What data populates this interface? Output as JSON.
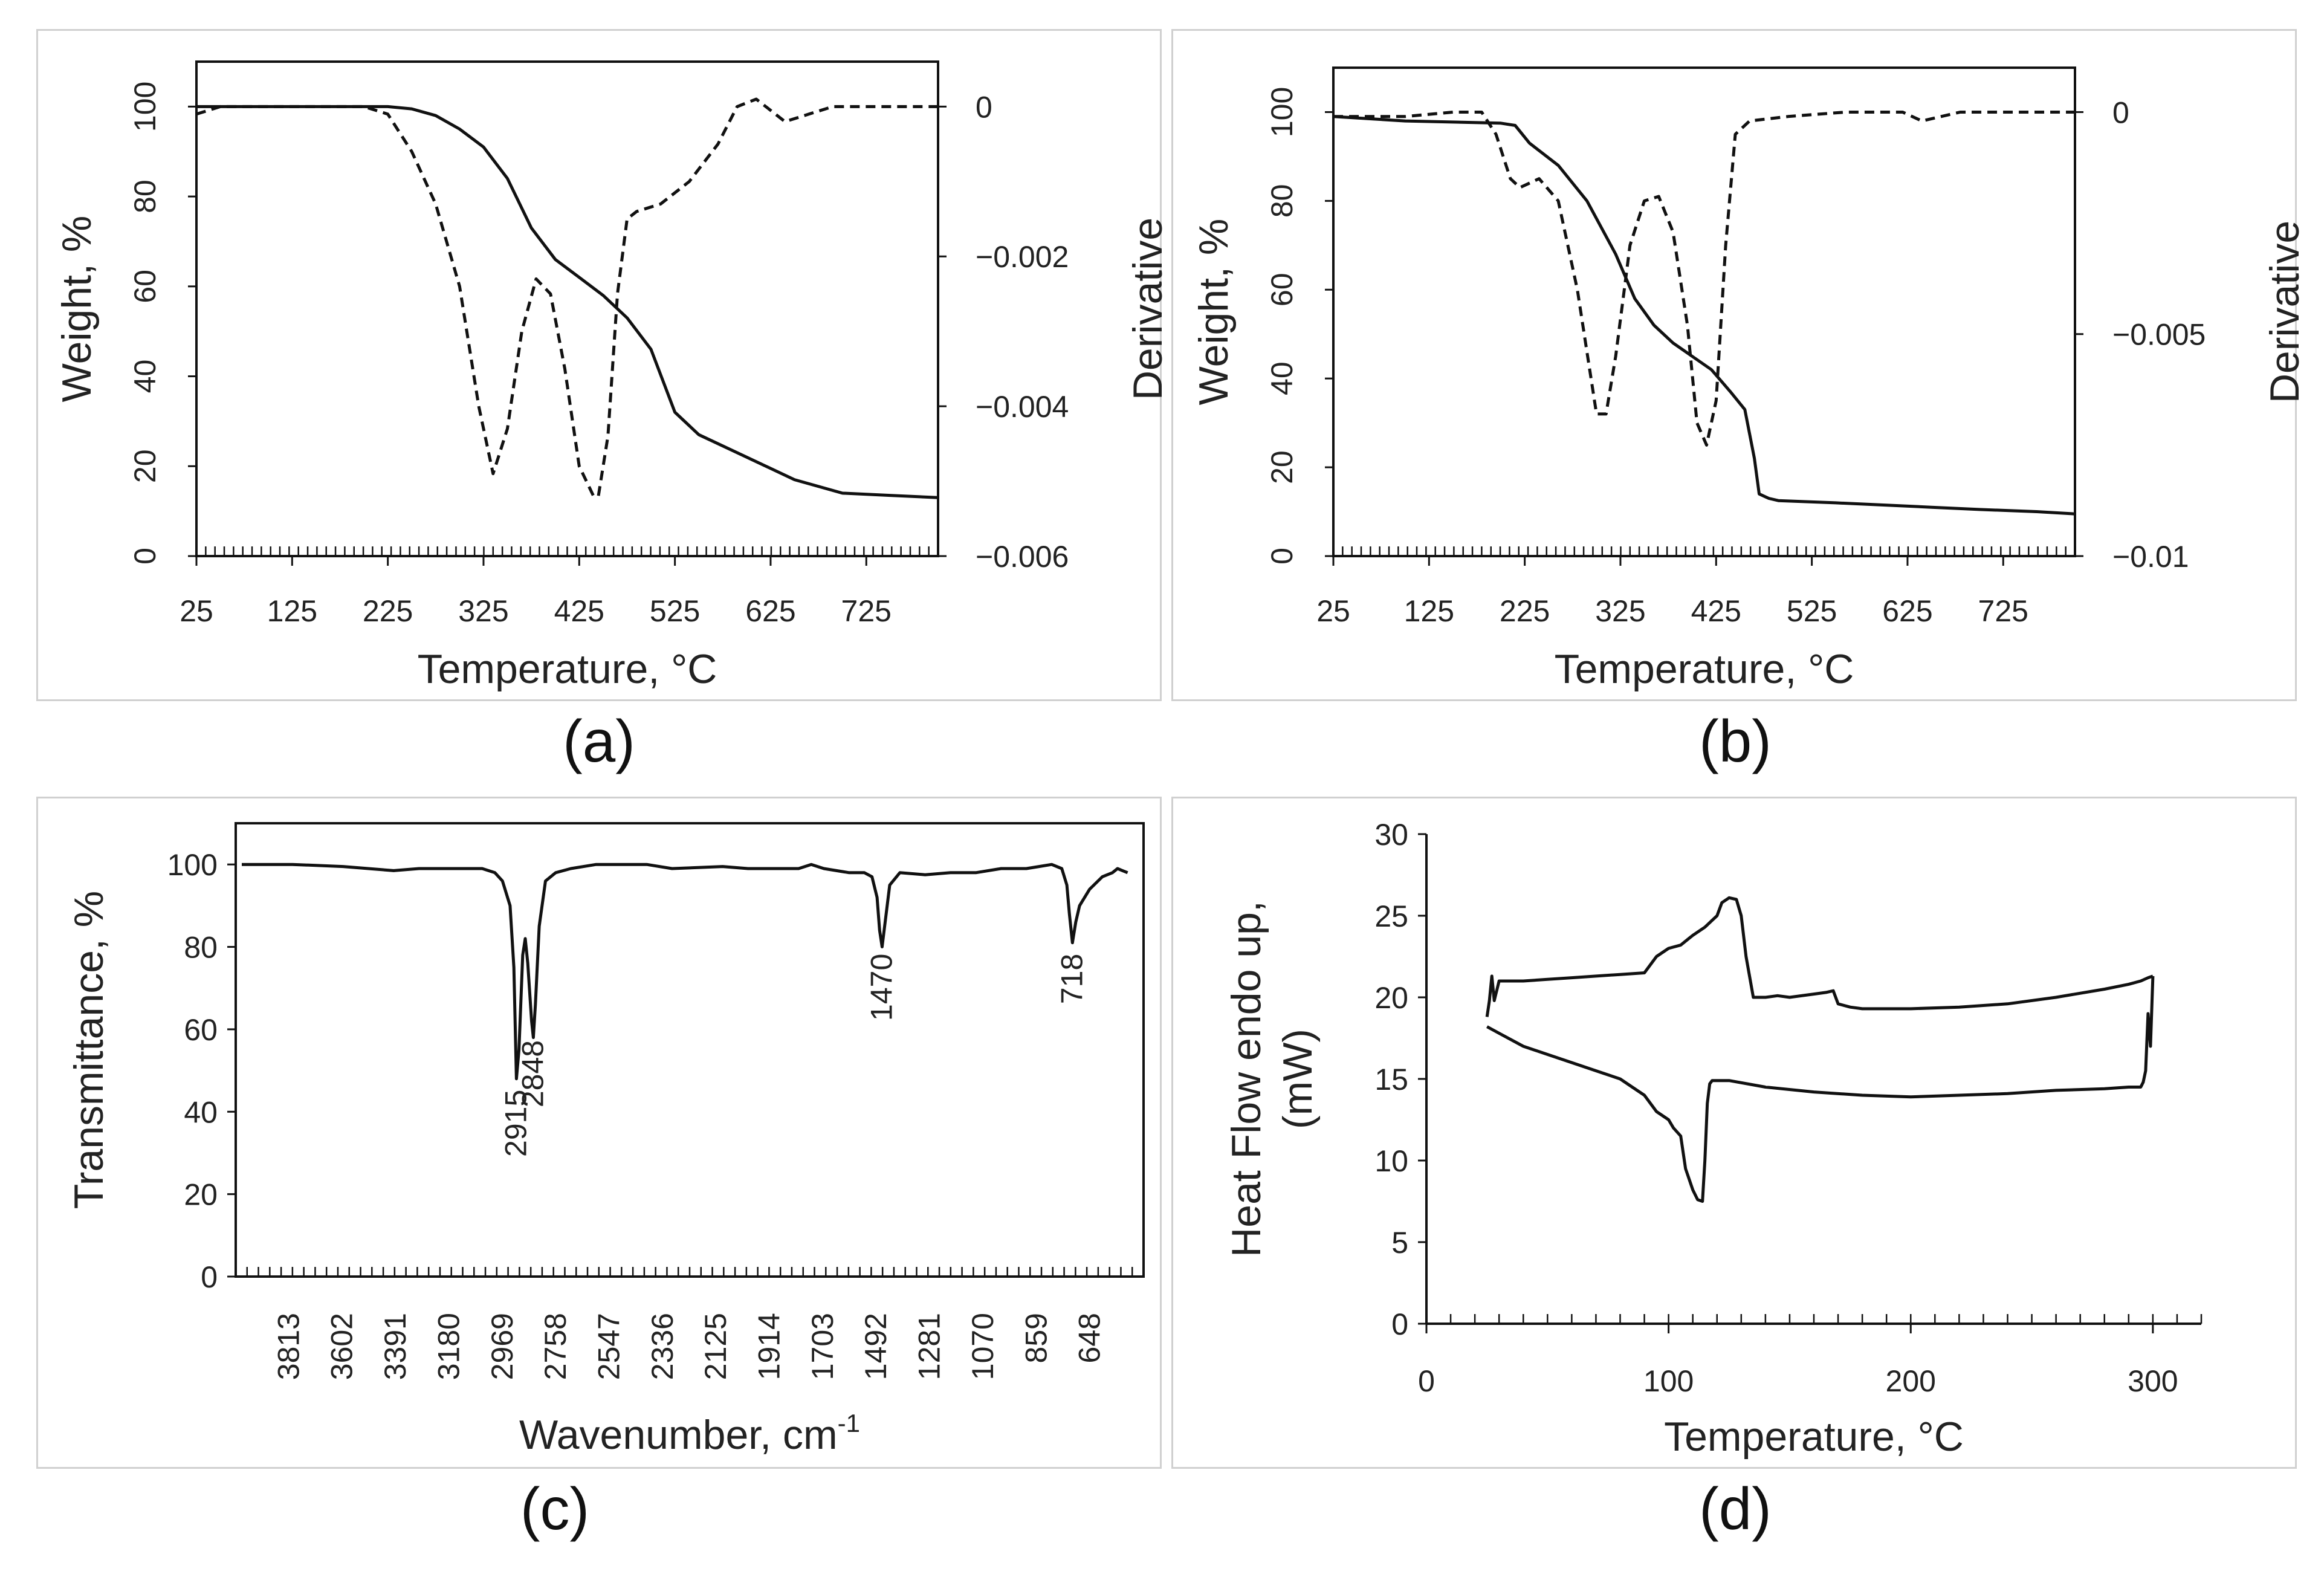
{
  "captions": [
    "(a)",
    "(b)",
    "(c)",
    "(d)"
  ],
  "chart_data": [
    {
      "panel": "a",
      "type": "line",
      "xlabel": "Temperature, °C",
      "ylabel": "Weight, %",
      "y2label": "Derivative",
      "xlim": [
        25,
        800
      ],
      "ylim": [
        0,
        110
      ],
      "y2lim": [
        -0.006,
        0.0006
      ],
      "x_ticks": [
        25,
        125,
        225,
        325,
        425,
        525,
        625,
        725
      ],
      "y_ticks": [
        0,
        20,
        40,
        60,
        80,
        100
      ],
      "y2_ticks": [
        0,
        -0.002,
        -0.004,
        -0.006
      ],
      "y2_tick_labels": [
        "0",
        "−0.002",
        "−0.004",
        "−0.006"
      ],
      "series": [
        {
          "axis": "left",
          "style": "solid",
          "x": [
            25,
            225,
            250,
            275,
            300,
            325,
            350,
            375,
            400,
            425,
            450,
            475,
            500,
            525,
            550,
            600,
            650,
            700,
            750,
            800
          ],
          "y": [
            100,
            100,
            99.5,
            98,
            95,
            91,
            84,
            73,
            66,
            62,
            58,
            53,
            46,
            32,
            27,
            22,
            17,
            14,
            13.5,
            13
          ]
        },
        {
          "axis": "right",
          "style": "dashed",
          "x": [
            25,
            50,
            100,
            150,
            200,
            225,
            250,
            275,
            300,
            320,
            335,
            350,
            365,
            380,
            395,
            410,
            425,
            440,
            445,
            455,
            465,
            475,
            485,
            510,
            540,
            570,
            590,
            610,
            640,
            665,
            690,
            720,
            760,
            800
          ],
          "y": [
            -0.0001,
            0,
            0,
            0,
            0,
            -0.0001,
            -0.0006,
            -0.0013,
            -0.0024,
            -0.004,
            -0.0049,
            -0.0043,
            -0.003,
            -0.0023,
            -0.0025,
            -0.0035,
            -0.0048,
            -0.0052,
            -0.0052,
            -0.0044,
            -0.0025,
            -0.0015,
            -0.0014,
            -0.0013,
            -0.001,
            -0.0005,
            0,
            0.0001,
            -0.0002,
            -0.0001,
            0,
            0,
            0,
            0
          ]
        }
      ]
    },
    {
      "panel": "b",
      "type": "line",
      "xlabel": "Temperature, °C",
      "ylabel": "Weight, %",
      "y2label": "Derivative",
      "xlim": [
        25,
        800
      ],
      "ylim": [
        0,
        110
      ],
      "y2lim": [
        -0.01,
        0.001
      ],
      "x_ticks": [
        25,
        125,
        225,
        325,
        425,
        525,
        625,
        725
      ],
      "y_ticks": [
        0,
        20,
        40,
        60,
        80,
        100
      ],
      "y2_ticks": [
        0,
        -0.005,
        -0.01
      ],
      "y2_tick_labels": [
        "0",
        "−0.005",
        "−0.01"
      ],
      "series": [
        {
          "axis": "left",
          "style": "solid",
          "x": [
            25,
            100,
            200,
            215,
            230,
            260,
            290,
            320,
            340,
            360,
            380,
            400,
            420,
            440,
            455,
            465,
            470,
            480,
            490,
            550,
            650,
            700,
            760,
            800
          ],
          "y": [
            99,
            98,
            97.5,
            97,
            93,
            88,
            80,
            68,
            58,
            52,
            48,
            45,
            42,
            37,
            33,
            22,
            14,
            13,
            12.5,
            12,
            11,
            10.5,
            10,
            9.5
          ]
        },
        {
          "axis": "right",
          "style": "dashed",
          "x": [
            25,
            50,
            100,
            150,
            180,
            195,
            210,
            220,
            240,
            260,
            280,
            300,
            310,
            320,
            335,
            350,
            365,
            380,
            395,
            405,
            415,
            425,
            435,
            445,
            460,
            500,
            560,
            620,
            640,
            680,
            740,
            800
          ],
          "y": [
            -0.0001,
            -0.0001,
            -0.0001,
            0,
            0,
            -0.0005,
            -0.0015,
            -0.0017,
            -0.0015,
            -0.002,
            -0.004,
            -0.0068,
            -0.0068,
            -0.0055,
            -0.003,
            -0.002,
            -0.0019,
            -0.0027,
            -0.0048,
            -0.007,
            -0.0075,
            -0.0065,
            -0.003,
            -0.0005,
            -0.0002,
            -0.0001,
            0,
            0,
            -0.0002,
            0,
            0,
            0
          ]
        }
      ]
    },
    {
      "panel": "c",
      "type": "line",
      "xlabel": "Wavenumber, cm",
      "xlabel_sup": "-1",
      "ylabel": "Transmittance, %",
      "xlim": [
        4024,
        437
      ],
      "ylim": [
        0,
        110
      ],
      "x_ticks": [
        3813,
        3602,
        3391,
        3180,
        2969,
        2758,
        2547,
        2336,
        2125,
        1914,
        1703,
        1492,
        1281,
        1070,
        859,
        648
      ],
      "y_ticks": [
        0,
        20,
        40,
        60,
        80,
        100
      ],
      "annotations": [
        {
          "text": "2915",
          "x": 2915,
          "y": 48
        },
        {
          "text": "2848",
          "x": 2848,
          "y": 60
        },
        {
          "text": "1470",
          "x": 1470,
          "y": 81
        },
        {
          "text": "718",
          "x": 718,
          "y": 81
        }
      ],
      "series": [
        {
          "style": "solid",
          "x": [
            4000,
            3800,
            3600,
            3500,
            3400,
            3300,
            3200,
            3050,
            3000,
            2970,
            2940,
            2925,
            2915,
            2905,
            2890,
            2880,
            2870,
            2855,
            2848,
            2840,
            2825,
            2800,
            2760,
            2700,
            2600,
            2400,
            2300,
            2100,
            2000,
            1900,
            1800,
            1750,
            1700,
            1600,
            1540,
            1510,
            1490,
            1480,
            1470,
            1460,
            1440,
            1400,
            1300,
            1200,
            1100,
            1000,
            900,
            850,
            800,
            760,
            740,
            730,
            718,
            705,
            690,
            650,
            600,
            560,
            540,
            520,
            500
          ],
          "y": [
            100,
            100,
            99.5,
            99,
            98.5,
            99,
            99,
            99,
            98,
            96,
            90,
            75,
            48,
            55,
            78,
            82,
            76,
            62,
            58,
            66,
            85,
            96,
            98,
            99,
            100,
            100,
            99,
            99.5,
            99,
            99,
            99,
            100,
            99,
            98,
            98,
            97,
            92,
            84,
            80,
            85,
            95,
            98,
            97.5,
            98,
            98,
            99,
            99,
            99.5,
            100,
            99,
            95,
            88,
            81,
            86,
            90,
            94,
            97,
            98,
            99,
            98.5,
            98
          ]
        }
      ]
    },
    {
      "panel": "d",
      "type": "line",
      "xlabel": "Temperature, °C",
      "ylabel_line1": "Heat Flow endo up,",
      "ylabel_line2": "(mW)",
      "xlim": [
        0,
        320
      ],
      "ylim": [
        0,
        30
      ],
      "x_ticks": [
        0,
        100,
        200,
        300
      ],
      "y_ticks": [
        0,
        5,
        10,
        15,
        20,
        25,
        30
      ],
      "series": [
        {
          "name": "",
          "style": "solid",
          "x": [
            25,
            26,
            27,
            28,
            29,
            30,
            32,
            35,
            40,
            50,
            60,
            70,
            80,
            90,
            95,
            100,
            105,
            110,
            115,
            120,
            122,
            125,
            128,
            130,
            132,
            135,
            140,
            145,
            150,
            160,
            165,
            168,
            170,
            175,
            180,
            200,
            220,
            240,
            260,
            280,
            290,
            295,
            298,
            300
          ],
          "y": [
            18.8,
            19.8,
            21.3,
            19.8,
            20.4,
            21.0,
            21.0,
            21.0,
            21.0,
            21.1,
            21.2,
            21.3,
            21.4,
            21.5,
            22.5,
            23.0,
            23.2,
            23.8,
            24.3,
            25.0,
            25.8,
            26.1,
            26.0,
            25.0,
            22.5,
            20.0,
            20.0,
            20.1,
            20.0,
            20.2,
            20.3,
            20.4,
            19.6,
            19.4,
            19.3,
            19.3,
            19.4,
            19.6,
            20.0,
            20.5,
            20.8,
            21.0,
            21.2,
            21.3
          ]
        },
        {
          "name": "",
          "style": "solid",
          "x": [
            300,
            299,
            298,
            297,
            296,
            295,
            290,
            280,
            260,
            240,
            220,
            200,
            180,
            160,
            140,
            125,
            120,
            118,
            117,
            116,
            115,
            114,
            112,
            110,
            107,
            105,
            102,
            100,
            95,
            90,
            85,
            80,
            70,
            60,
            50,
            40,
            30,
            25
          ],
          "y": [
            21.3,
            17.0,
            19.0,
            15.5,
            14.8,
            14.5,
            14.5,
            14.4,
            14.3,
            14.1,
            14.0,
            13.9,
            14.0,
            14.2,
            14.5,
            14.9,
            14.9,
            14.9,
            14.7,
            13.5,
            10.0,
            7.5,
            7.6,
            8.2,
            9.5,
            11.5,
            12.0,
            12.5,
            13.0,
            14.0,
            14.5,
            15.0,
            15.5,
            16.0,
            16.5,
            17.0,
            17.8,
            18.2
          ]
        }
      ]
    }
  ]
}
